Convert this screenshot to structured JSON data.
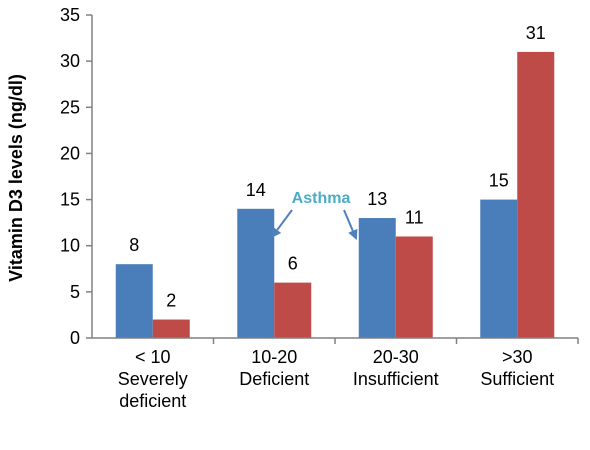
{
  "chart_data": {
    "type": "bar",
    "title": "",
    "xlabel": "",
    "ylabel": "Vitamin D3 levels (ng/dl)",
    "ylim": [
      0,
      35
    ],
    "yticks": [
      0,
      5,
      10,
      15,
      20,
      25,
      30,
      35
    ],
    "categories": [
      [
        "< 10",
        "Severely",
        "deficient"
      ],
      [
        "10-20",
        "Deficient"
      ],
      [
        "20-30",
        "Insufficient"
      ],
      [
        ">30",
        "Sufficient"
      ]
    ],
    "series": [
      {
        "values": [
          8,
          14,
          13,
          15
        ],
        "color": "#4A7EBB"
      },
      {
        "values": [
          2,
          6,
          11,
          31
        ],
        "color": "#BE4B48"
      }
    ],
    "grid": false,
    "legend": "none",
    "annotation": {
      "text": "Asthma",
      "color": "#4BACC6",
      "arrow_color": "#4F81BD",
      "points_to": [
        "10-20 series 1 bar",
        "20-30 series 1 bar"
      ]
    }
  }
}
